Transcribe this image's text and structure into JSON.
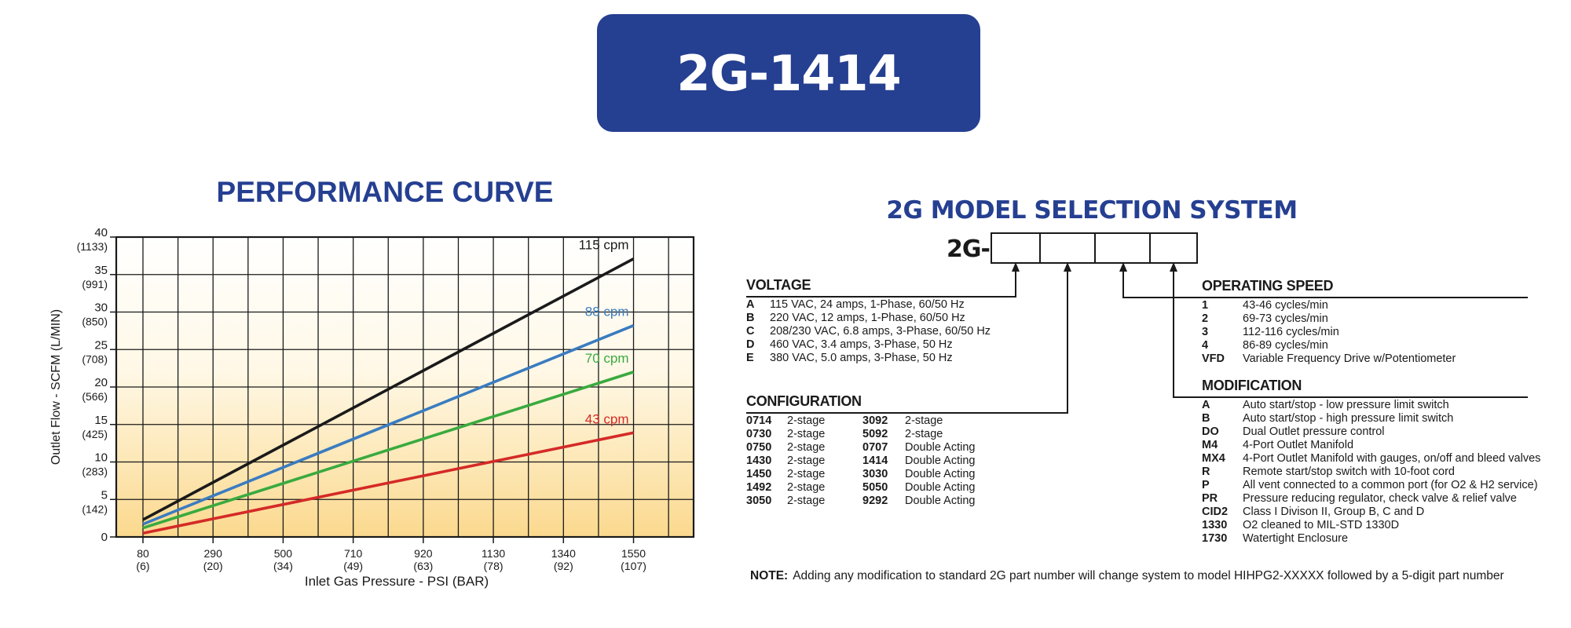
{
  "header": {
    "model_title": "2G-1414"
  },
  "performance": {
    "title": "PERFORMANCE CURVE"
  },
  "chart_data": {
    "type": "line",
    "xlabel": "Inlet Gas Pressure - PSI (BAR)",
    "ylabel": "Outlet  Flow - SCFM  (L/MIN)",
    "xlim": [
      0,
      1730
    ],
    "ylim": [
      0,
      40
    ],
    "grid": true,
    "x_ticks": [
      {
        "value": 80,
        "label": "80",
        "sub": "(6)"
      },
      {
        "value": 290,
        "label": "290",
        "sub": "(20)"
      },
      {
        "value": 500,
        "label": "500",
        "sub": "(34)"
      },
      {
        "value": 710,
        "label": "710",
        "sub": "(49)"
      },
      {
        "value": 920,
        "label": "920",
        "sub": "(63)"
      },
      {
        "value": 1130,
        "label": "1130",
        "sub": "(78)"
      },
      {
        "value": 1340,
        "label": "1340",
        "sub": "(92)"
      },
      {
        "value": 1550,
        "label": "1550",
        "sub": "(107)"
      }
    ],
    "y_ticks": [
      {
        "value": 0,
        "label": "0",
        "sub": ""
      },
      {
        "value": 5,
        "label": "5",
        "sub": "(142)"
      },
      {
        "value": 10,
        "label": "10",
        "sub": "(283)"
      },
      {
        "value": 15,
        "label": "15",
        "sub": "(425)"
      },
      {
        "value": 20,
        "label": "20",
        "sub": "(566)"
      },
      {
        "value": 25,
        "label": "25",
        "sub": "(708)"
      },
      {
        "value": 30,
        "label": "30",
        "sub": "(850)"
      },
      {
        "value": 35,
        "label": "35",
        "sub": "(991)"
      },
      {
        "value": 40,
        "label": "40",
        "sub": "(1133)"
      }
    ],
    "series": [
      {
        "name": "115 cpm",
        "color": "#1a1a1a",
        "x": [
          80,
          1550
        ],
        "y": [
          2.3,
          37.1
        ]
      },
      {
        "name": "88 cpm",
        "color": "#3a7cc0",
        "x": [
          80,
          1550
        ],
        "y": [
          1.7,
          28.2
        ]
      },
      {
        "name": "70 cpm",
        "color": "#3aaa3f",
        "x": [
          80,
          1550
        ],
        "y": [
          1.2,
          22.0
        ]
      },
      {
        "name": "43 cpm",
        "color": "#d42a27",
        "x": [
          80,
          1550
        ],
        "y": [
          0.5,
          13.9
        ]
      }
    ]
  },
  "selection": {
    "title": "2G MODEL SELECTION SYSTEM",
    "prefix": "2G-",
    "voltage": {
      "heading": "VOLTAGE",
      "items": [
        {
          "code": "A",
          "desc": "115 VAC, 24 amps, 1-Phase, 60/50 Hz"
        },
        {
          "code": "B",
          "desc": "220 VAC,  12 amps, 1-Phase, 60/50 Hz"
        },
        {
          "code": "C",
          "desc": "208/230 VAC,  6.8 amps, 3-Phase, 60/50 Hz"
        },
        {
          "code": "D",
          "desc": "460 VAC,  3.4 amps, 3-Phase, 50 Hz"
        },
        {
          "code": "E",
          "desc": "380 VAC, 5.0 amps, 3-Phase, 50 Hz"
        }
      ]
    },
    "configuration": {
      "heading": "CONFIGURATION",
      "items": [
        {
          "code": "0714",
          "desc": "2-stage",
          "code2": "3092",
          "desc2": "2-stage"
        },
        {
          "code": "0730",
          "desc": "2-stage",
          "code2": "5092",
          "desc2": "2-stage"
        },
        {
          "code": "0750",
          "desc": "2-stage",
          "code2": "0707",
          "desc2": "Double Acting"
        },
        {
          "code": "1430",
          "desc": "2-stage",
          "code2": "1414",
          "desc2": "Double Acting"
        },
        {
          "code": "1450",
          "desc": "2-stage",
          "code2": "3030",
          "desc2": "Double Acting"
        },
        {
          "code": "1492",
          "desc": "2-stage",
          "code2": "5050",
          "desc2": "Double Acting"
        },
        {
          "code": "3050",
          "desc": "2-stage",
          "code2": "9292",
          "desc2": "Double Acting"
        }
      ]
    },
    "operating_speed": {
      "heading": "OPERATING SPEED",
      "items": [
        {
          "code": "1",
          "desc": "43-46 cycles/min"
        },
        {
          "code": "2",
          "desc": "69-73 cycles/min"
        },
        {
          "code": "3",
          "desc": "112-116 cycles/min"
        },
        {
          "code": "4",
          "desc": "86-89 cycles/min"
        },
        {
          "code": "VFD",
          "desc": "Variable Frequency Drive w/Potentiometer"
        }
      ]
    },
    "modification": {
      "heading": "MODIFICATION",
      "items": [
        {
          "code": "A",
          "desc": "Auto start/stop - low pressure limit switch"
        },
        {
          "code": "B",
          "desc": "Auto start/stop - high pressure limit switch"
        },
        {
          "code": "DO",
          "desc": "Dual Outlet pressure control"
        },
        {
          "code": "M4",
          "desc": "4-Port Outlet Manifold"
        },
        {
          "code": "MX4",
          "desc": "4-Port Outlet Manifold with gauges, on/off and bleed valves"
        },
        {
          "code": "R",
          "desc": "Remote start/stop switch with 10-foot cord"
        },
        {
          "code": "P",
          "desc": "All vent connected to a common port (for O2 & H2 service)"
        },
        {
          "code": "PR",
          "desc": "Pressure reducing regulator, check valve & relief valve"
        },
        {
          "code": "CID2",
          "desc": "Class I Divison II, Group B, C and D"
        },
        {
          "code": "1330",
          "desc": "O2 cleaned to MIL-STD 1330D"
        },
        {
          "code": "1730",
          "desc": "Watertight Enclosure"
        }
      ]
    },
    "note": {
      "label": "NOTE:",
      "text": "Adding any modification to standard 2G part number will change system to model HIHPG2-XXXXX followed by a 5-digit part number"
    }
  }
}
